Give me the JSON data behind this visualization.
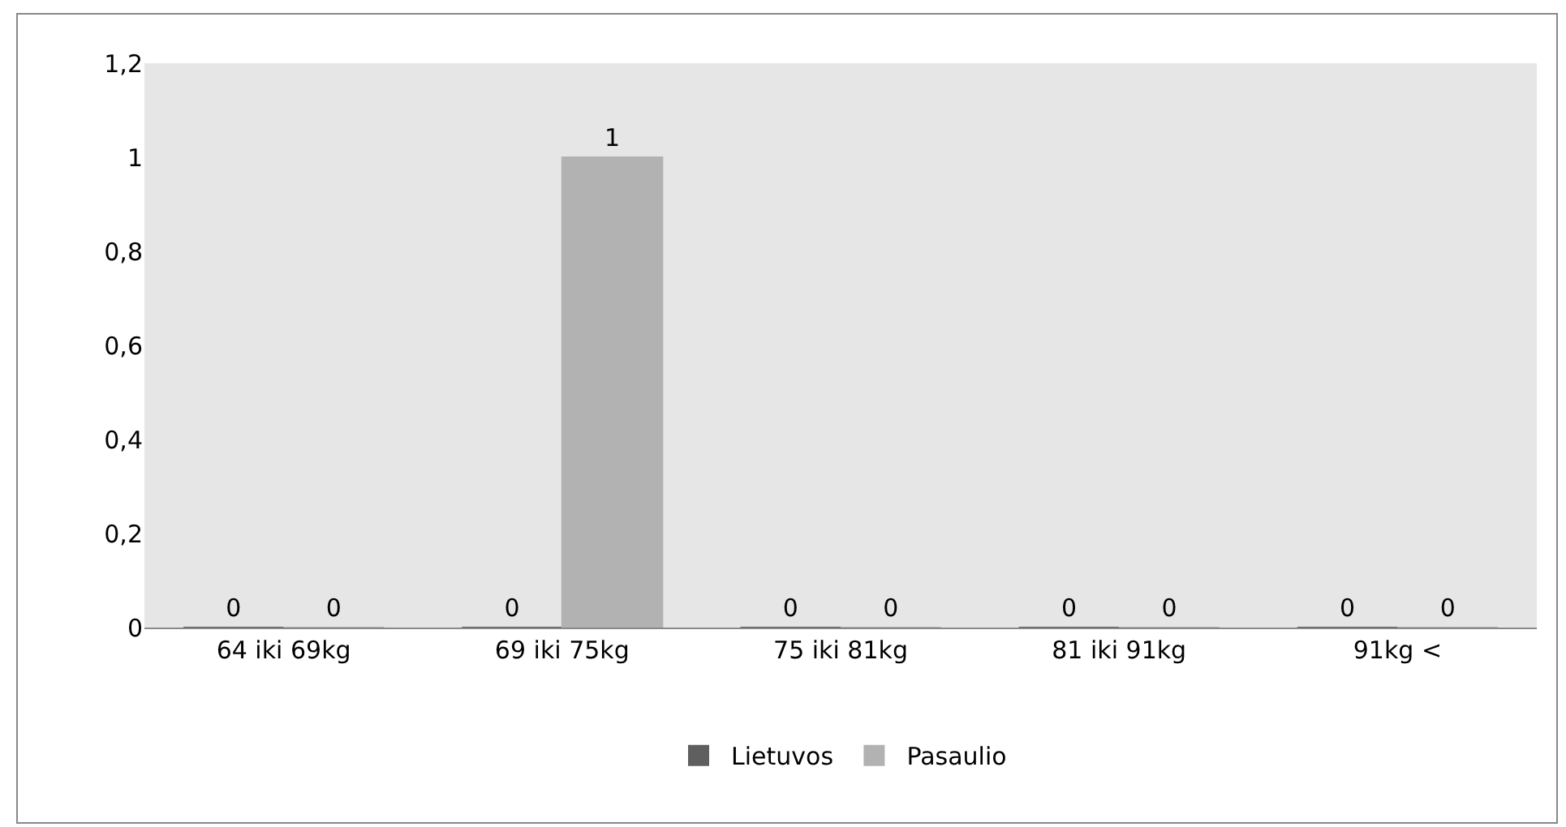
{
  "chart_data": {
    "type": "bar",
    "categories": [
      "64 iki 69kg",
      "69 iki 75kg",
      "75 iki 81kg",
      "81 iki 91kg",
      "91kg <"
    ],
    "series": [
      {
        "name": "Lietuvos",
        "color": "#5f5f5f",
        "values": [
          0,
          0,
          0,
          0,
          0
        ]
      },
      {
        "name": "Pasaulio",
        "color": "#b2b2b2",
        "values": [
          0,
          1,
          0,
          0,
          0
        ]
      }
    ],
    "ylim": [
      0,
      1.2
    ],
    "yticks": [
      0,
      {
        "value": 0.2,
        "label": "0,2"
      },
      {
        "value": 0.4,
        "label": "0,4"
      },
      {
        "value": 0.6,
        "label": "0,6"
      },
      {
        "value": 0.8,
        "label": "0,8"
      },
      1,
      {
        "value": 1.2,
        "label": "1,2"
      }
    ],
    "grid": false,
    "legend": "bottom",
    "data_labels": true
  }
}
